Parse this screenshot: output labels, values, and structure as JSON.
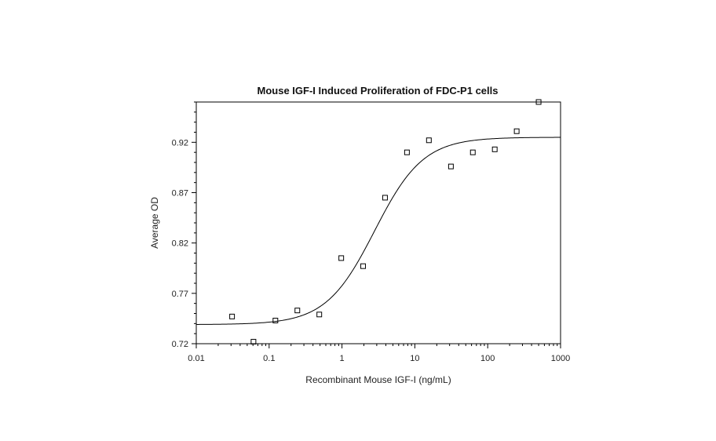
{
  "chart_data": {
    "type": "scatter",
    "title": "Mouse IGF-I Induced Proliferation of FDC-P1 cells",
    "xlabel": "Recombinant Mouse IGF-I (ng/mL)",
    "ylabel": "Average OD",
    "x_scale": "log",
    "xlim": [
      0.01,
      1000
    ],
    "ylim": [
      0.72,
      0.96
    ],
    "x_ticks": [
      0.01,
      0.1,
      1,
      10,
      100,
      1000
    ],
    "x_tick_labels": [
      "0.01",
      "0.1",
      "1",
      "10",
      "100",
      "1000"
    ],
    "y_ticks": [
      0.72,
      0.77,
      0.82,
      0.87,
      0.92
    ],
    "y_tick_labels": [
      "0.72",
      "0.77",
      "0.82",
      "0.87",
      "0.92"
    ],
    "grid": false,
    "legend": "none",
    "colors": {
      "points": "#000000",
      "curve": "#000000",
      "axes": "#000000"
    },
    "series": [
      {
        "marker": "square",
        "x": [
          0.031,
          0.061,
          0.122,
          0.244,
          0.488,
          0.977,
          1.95,
          3.9,
          7.8,
          15.6,
          31.3,
          62.5,
          125,
          250,
          500
        ],
        "y": [
          0.747,
          0.722,
          0.743,
          0.753,
          0.749,
          0.805,
          0.797,
          0.865,
          0.91,
          0.922,
          0.896,
          0.91,
          0.913,
          0.931,
          0.96
        ]
      }
    ],
    "fit_curve": {
      "model": "4PL",
      "bottom": 0.739,
      "top": 0.925,
      "ec50": 2.8,
      "hill": 1.3
    }
  }
}
